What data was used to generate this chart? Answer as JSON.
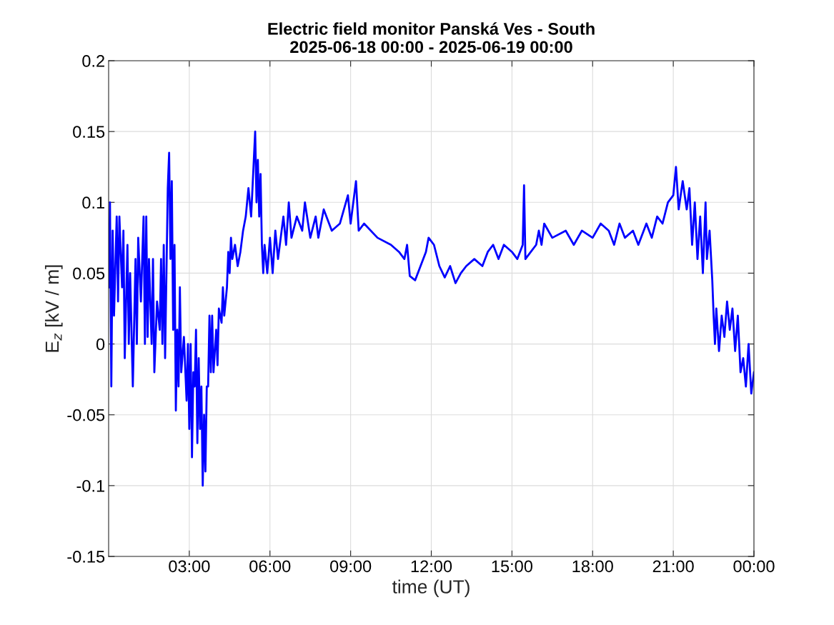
{
  "chart_data": {
    "type": "line",
    "title": "Electric field monitor Panská Ves - South\n2025-06-18 00:00 - 2025-06-19 00:00",
    "xlabel": "time (UT)",
    "ylabel": "E$_{z}$ [kV / m]",
    "xlim": [
      0,
      24
    ],
    "xticks": [
      {
        "value": 3,
        "label": "03:00"
      },
      {
        "value": 6,
        "label": "06:00"
      },
      {
        "value": 9,
        "label": "09:00"
      },
      {
        "value": 12,
        "label": "12:00"
      },
      {
        "value": 15,
        "label": "15:00"
      },
      {
        "value": 18,
        "label": "18:00"
      },
      {
        "value": 21,
        "label": "21:00"
      },
      {
        "value": 24,
        "label": "00:00"
      }
    ],
    "ylim": [
      -0.15,
      0.2
    ],
    "yticks": [
      -0.15,
      -0.1,
      -0.05,
      0,
      0.05,
      0.1,
      0.15,
      0.2
    ],
    "grid": true,
    "line_style": "solid",
    "series": [
      {
        "color": "#0000ff",
        "x": [
          0.0,
          0.05,
          0.1,
          0.15,
          0.2,
          0.3,
          0.35,
          0.4,
          0.5,
          0.55,
          0.6,
          0.7,
          0.75,
          0.8,
          0.9,
          1.0,
          1.05,
          1.1,
          1.2,
          1.3,
          1.35,
          1.4,
          1.45,
          1.5,
          1.6,
          1.65,
          1.7,
          1.8,
          1.9,
          1.95,
          2.0,
          2.05,
          2.1,
          2.2,
          2.25,
          2.3,
          2.35,
          2.4,
          2.45,
          2.5,
          2.55,
          2.6,
          2.65,
          2.7,
          2.8,
          2.9,
          2.95,
          3.0,
          3.05,
          3.1,
          3.15,
          3.2,
          3.25,
          3.3,
          3.35,
          3.4,
          3.45,
          3.5,
          3.55,
          3.6,
          3.65,
          3.7,
          3.75,
          3.8,
          3.85,
          3.9,
          4.0,
          4.05,
          4.1,
          4.2,
          4.25,
          4.3,
          4.4,
          4.45,
          4.5,
          4.55,
          4.6,
          4.7,
          4.8,
          4.9,
          5.0,
          5.1,
          5.2,
          5.3,
          5.4,
          5.45,
          5.5,
          5.55,
          5.6,
          5.65,
          5.7,
          5.75,
          5.8,
          5.9,
          6.0,
          6.1,
          6.2,
          6.3,
          6.5,
          6.6,
          6.7,
          6.8,
          7.0,
          7.2,
          7.3,
          7.5,
          7.7,
          7.8,
          8.0,
          8.3,
          8.6,
          8.9,
          9.0,
          9.2,
          9.3,
          9.5,
          10.0,
          10.5,
          10.8,
          11.0,
          11.1,
          11.2,
          11.4,
          11.6,
          11.8,
          11.9,
          12.1,
          12.3,
          12.5,
          12.7,
          12.9,
          13.1,
          13.3,
          13.6,
          13.9,
          14.1,
          14.3,
          14.5,
          14.7,
          15.0,
          15.2,
          15.4,
          15.45,
          15.5,
          15.7,
          15.9,
          16.0,
          16.1,
          16.2,
          16.5,
          17.0,
          17.3,
          17.6,
          18.0,
          18.3,
          18.6,
          18.8,
          19.0,
          19.2,
          19.5,
          19.7,
          20.0,
          20.2,
          20.4,
          20.6,
          20.8,
          21.0,
          21.1,
          21.2,
          21.35,
          21.5,
          21.6,
          21.7,
          21.8,
          21.9,
          22.0,
          22.1,
          22.2,
          22.25,
          22.35,
          22.45,
          22.5,
          22.55,
          22.6,
          22.7,
          22.8,
          22.9,
          23.0,
          23.1,
          23.2,
          23.3,
          23.4,
          23.5,
          23.6,
          23.7,
          23.8,
          23.9,
          24.0
        ],
        "values": [
          0.04,
          0.1,
          -0.03,
          0.08,
          0.02,
          0.09,
          0.03,
          0.09,
          0.04,
          0.08,
          -0.01,
          0.07,
          0.0,
          0.05,
          -0.03,
          0.06,
          0.0,
          0.075,
          0.03,
          0.09,
          0.0,
          0.09,
          0.005,
          0.06,
          0.0,
          0.06,
          -0.02,
          0.03,
          0.01,
          0.06,
          0.0,
          0.07,
          -0.01,
          0.11,
          0.135,
          0.06,
          0.115,
          0.01,
          0.07,
          -0.047,
          0.01,
          -0.03,
          0.04,
          -0.02,
          0.005,
          -0.04,
          0.0,
          -0.06,
          0.0,
          -0.08,
          -0.02,
          -0.03,
          0.01,
          -0.07,
          -0.01,
          -0.06,
          -0.03,
          -0.1,
          -0.05,
          -0.09,
          -0.03,
          -0.03,
          0.02,
          -0.02,
          0.02,
          -0.02,
          0.01,
          -0.015,
          0.025,
          0.015,
          0.04,
          0.02,
          0.04,
          0.065,
          0.05,
          0.075,
          0.06,
          0.07,
          0.055,
          0.065,
          0.08,
          0.09,
          0.11,
          0.09,
          0.13,
          0.15,
          0.1,
          0.13,
          0.09,
          0.12,
          0.07,
          0.05,
          0.07,
          0.05,
          0.075,
          0.05,
          0.08,
          0.06,
          0.09,
          0.07,
          0.1,
          0.075,
          0.09,
          0.08,
          0.1,
          0.075,
          0.09,
          0.075,
          0.095,
          0.08,
          0.085,
          0.105,
          0.085,
          0.115,
          0.08,
          0.085,
          0.075,
          0.07,
          0.065,
          0.06,
          0.07,
          0.048,
          0.045,
          0.055,
          0.065,
          0.075,
          0.07,
          0.055,
          0.047,
          0.055,
          0.043,
          0.05,
          0.055,
          0.06,
          0.055,
          0.065,
          0.07,
          0.06,
          0.07,
          0.065,
          0.06,
          0.07,
          0.112,
          0.06,
          0.065,
          0.07,
          0.08,
          0.07,
          0.085,
          0.075,
          0.08,
          0.07,
          0.08,
          0.075,
          0.085,
          0.08,
          0.07,
          0.085,
          0.075,
          0.08,
          0.07,
          0.085,
          0.075,
          0.09,
          0.085,
          0.1,
          0.105,
          0.125,
          0.095,
          0.115,
          0.095,
          0.11,
          0.07,
          0.1,
          0.06,
          0.09,
          0.05,
          0.1,
          0.06,
          0.08,
          0.045,
          0.02,
          0.0,
          0.025,
          -0.005,
          0.02,
          0.005,
          0.03,
          0.01,
          0.025,
          -0.005,
          0.02,
          -0.02,
          -0.01,
          -0.03,
          0.0,
          -0.035,
          -0.02
        ]
      }
    ]
  }
}
